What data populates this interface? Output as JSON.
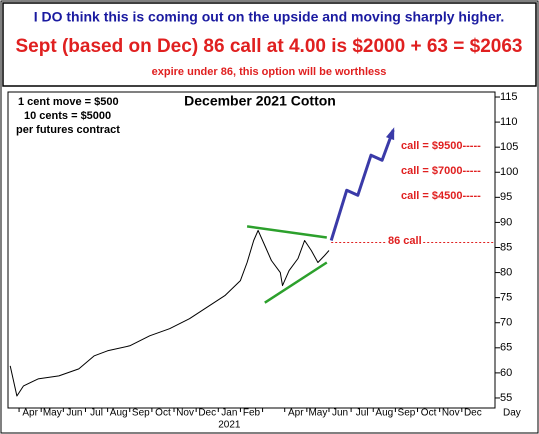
{
  "chart_data": {
    "type": "line",
    "notes": [
      "I DO think this is coming out on the upside and moving sharply higher.",
      "Sept (based on Dec) 86 call at 4.00 is $2000 + 63 = $2063",
      "expire under 86, this option will be worthless"
    ],
    "title": "December 2021 Cotton",
    "annotations": [
      "1 cent move = $500",
      "10 cents = $5000",
      "per futures contract",
      "call = $9500-----",
      "call = $7000-----",
      "call = $4500-----",
      "86 call"
    ],
    "categories": [
      "Apr",
      "May",
      "Jun",
      "Jul",
      "Aug",
      "Sep",
      "Oct",
      "Nov",
      "Dec",
      "Jan",
      "Feb",
      null,
      "Apr",
      "May",
      "Jun",
      "Jul",
      "Aug",
      "Sep",
      "Oct",
      "Nov",
      "Dec"
    ],
    "year_label": "2021",
    "x_label": "Day",
    "xlim": [
      -1,
      21
    ],
    "ylim": [
      53,
      116
    ],
    "yticks": [
      55,
      60,
      65,
      70,
      75,
      80,
      85,
      90,
      95,
      100,
      105,
      110,
      115
    ],
    "series": [
      {
        "color": "#000000",
        "x": [
          -0.9,
          -0.6,
          -0.3,
          0.36,
          1.3,
          2.2,
          2.9,
          3.5,
          4.5,
          5.4,
          6.3,
          7.2,
          8.1,
          8.8,
          9.5,
          9.8,
          10.1,
          10.3,
          10.6,
          10.9,
          11.3,
          11.4,
          11.7,
          12.1,
          12.4,
          12.7,
          13,
          13.3,
          13.5
        ],
        "values": [
          61.4,
          55.4,
          57.4,
          58.8,
          59.4,
          60.8,
          63.4,
          64.4,
          65.4,
          67.4,
          68.8,
          70.8,
          73.4,
          75.4,
          78.4,
          82,
          86.4,
          88.4,
          85.4,
          82.4,
          80,
          77.4,
          80.4,
          82.8,
          86.4,
          84.4,
          82,
          83.4,
          84.4
        ]
      },
      {
        "color": "#2ca02c",
        "x": [
          9.8,
          13.4
        ],
        "values": [
          89.2,
          87
        ]
      },
      {
        "color": "#2ca02c",
        "x": [
          10.6,
          13.4
        ],
        "values": [
          74,
          82
        ]
      },
      {
        "color": "#3a3aa8",
        "x": [
          13.6,
          14.3,
          14.8,
          15.4,
          15.9,
          16.4
        ],
        "values": [
          86.4,
          96.4,
          95.4,
          103.4,
          102.4,
          108.4
        ]
      },
      {
        "color": "#e02020",
        "x": [
          13.6,
          21
        ],
        "values": [
          86,
          86
        ]
      }
    ]
  }
}
